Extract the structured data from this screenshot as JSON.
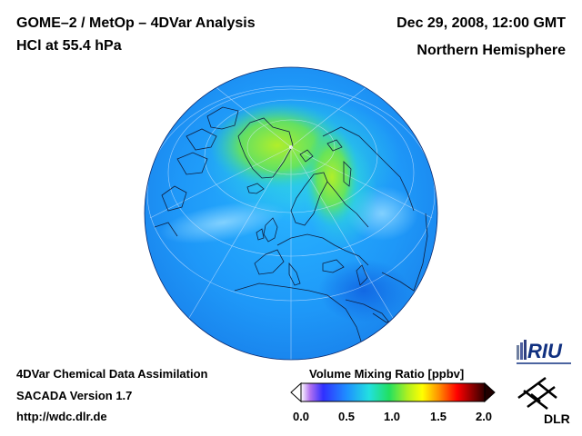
{
  "header": {
    "title_line1": "GOME–2 / MetOp – 4DVar Analysis",
    "title_line2": "HCl at 55.4 hPa",
    "datetime": "Dec 29, 2008, 12:00 GMT",
    "region": "Northern Hemisphere"
  },
  "footer": {
    "line1": "4DVar Chemical Data Assimilation",
    "line2": "SACADA Version 1.7",
    "line3": "http://wdc.dlr.de"
  },
  "colorbar": {
    "title": "Volume Mixing Ratio [ppbv]",
    "ticks": [
      "0.0",
      "0.5",
      "1.0",
      "1.5",
      "2.0"
    ],
    "tick_values": [
      0.0,
      0.5,
      1.0,
      1.5,
      2.0
    ],
    "range": [
      0.0,
      2.0
    ],
    "colors": [
      "#ffffff",
      "#a020f0",
      "#1f3cff",
      "#1ea0ff",
      "#22e0e0",
      "#22e060",
      "#a0ff20",
      "#ffff00",
      "#ff9000",
      "#ff0000",
      "#a00000",
      "#400000"
    ]
  },
  "logos": {
    "riu": "RIU",
    "dlr": "DLR"
  },
  "map": {
    "projection": "orthographic",
    "center": "North Pole (tilted, Europe toward viewer)",
    "background_color": "#1e96ff"
  }
}
